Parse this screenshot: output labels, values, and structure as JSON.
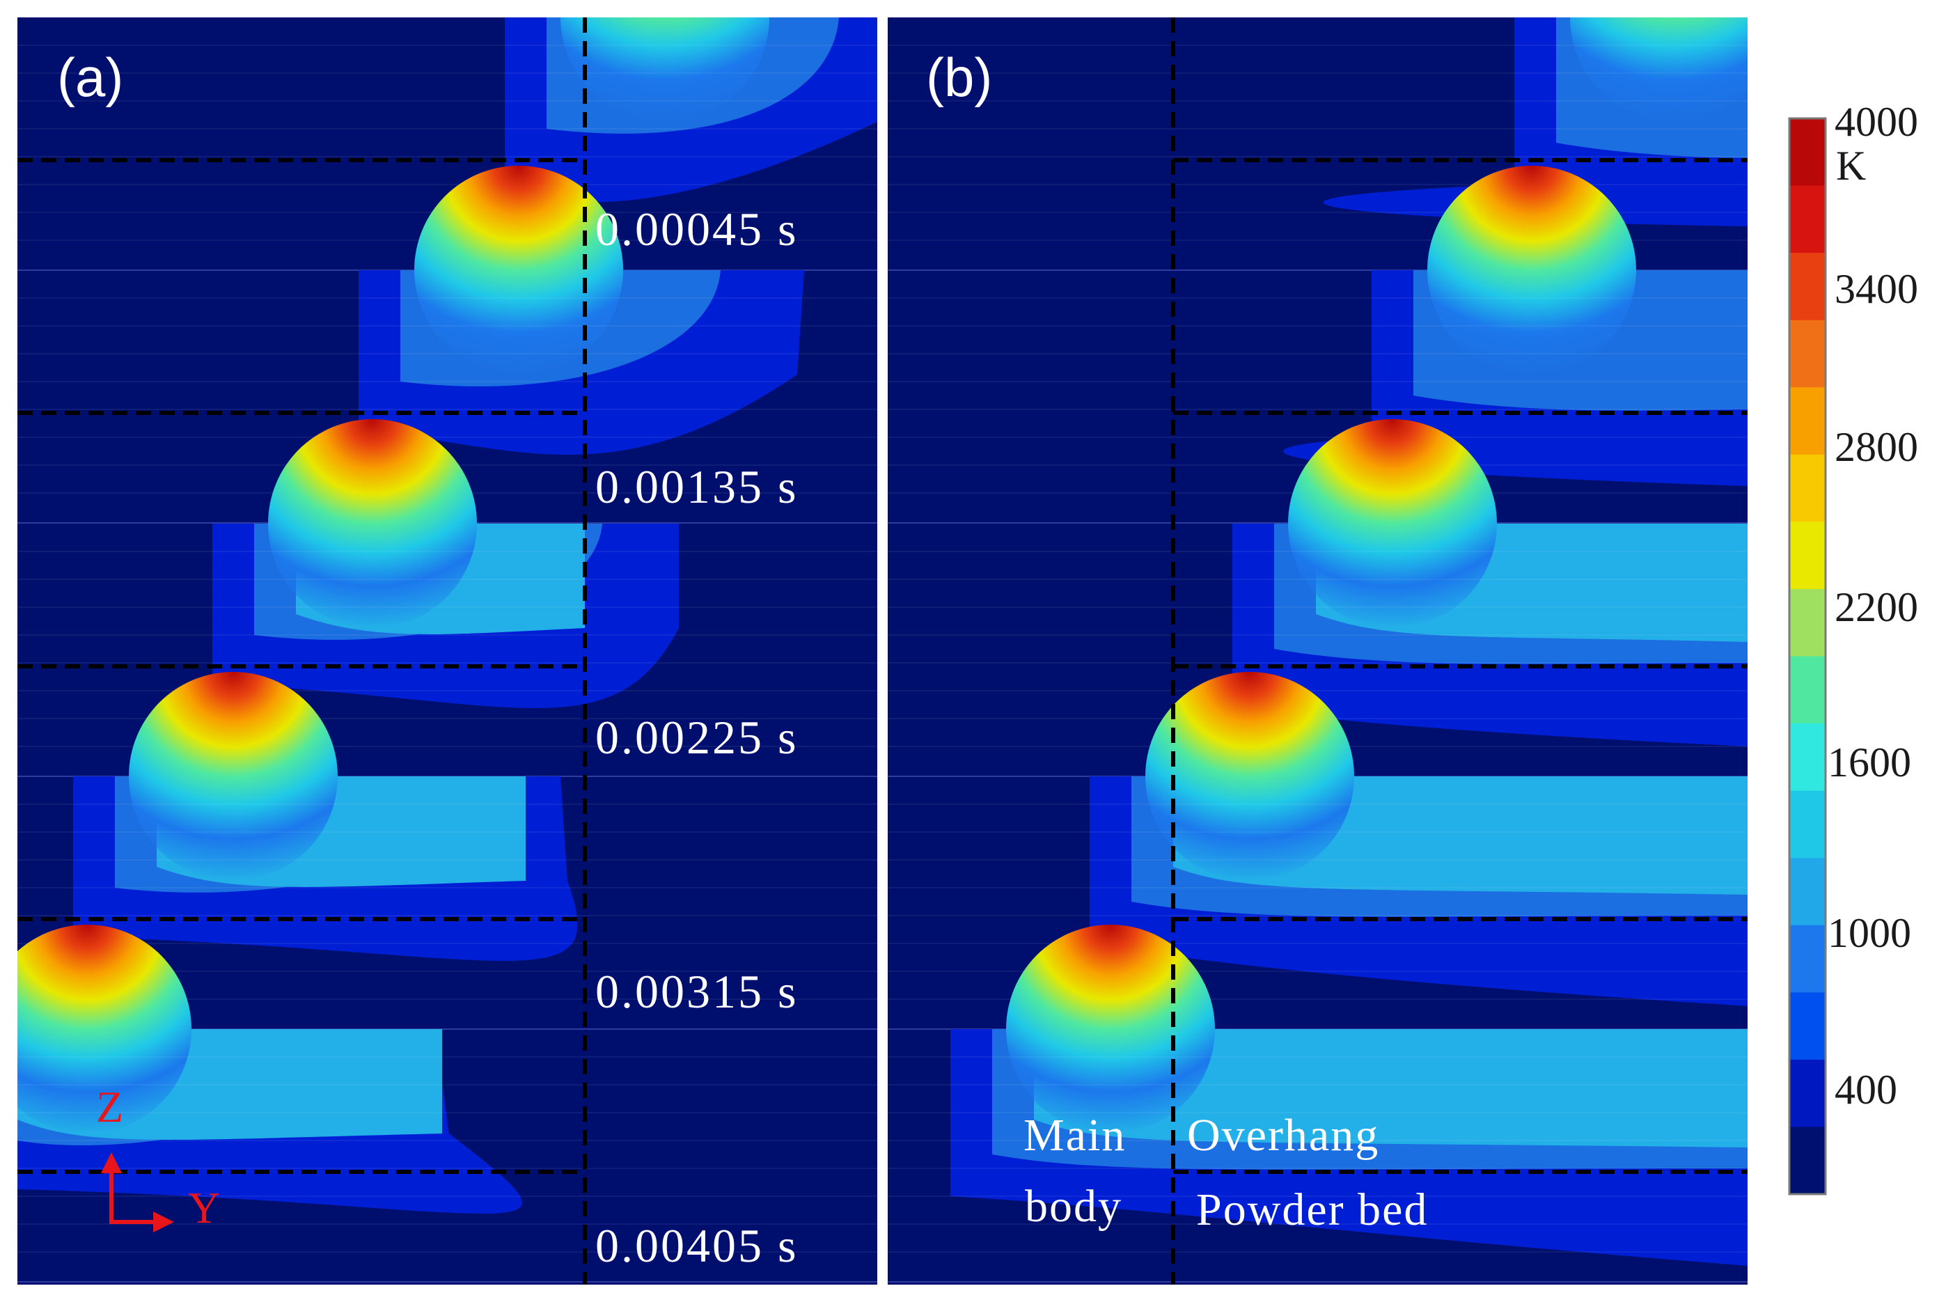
{
  "panels": [
    {
      "label": "(a)"
    },
    {
      "label": "(b)"
    }
  ],
  "time_labels": [
    "0.00045 s",
    "0.00135 s",
    "0.00225 s",
    "0.00315 s",
    "0.00405 s"
  ],
  "region_labels": {
    "main": "Main",
    "body": "body",
    "overhang": "Overhang",
    "powder_bed": "Powder bed"
  },
  "axes": {
    "z": "Z",
    "y": "Y"
  },
  "colorbar": {
    "unit": "K",
    "ticks": [
      "4000",
      "3400",
      "2800",
      "2200",
      "1600",
      "1000",
      "400"
    ],
    "tick_values": [
      4000,
      3400,
      2800,
      2200,
      1600,
      1000,
      400
    ],
    "min": 200,
    "max": 4000,
    "colors": [
      "#001070",
      "#0018c0",
      "#0050f0",
      "#1c78ec",
      "#20a8e8",
      "#20c8e8",
      "#30e8e0",
      "#50e8a0",
      "#a0e060",
      "#e8e800",
      "#f8c800",
      "#f8a000",
      "#f07018",
      "#e84010",
      "#d81410",
      "#b80808"
    ]
  },
  "colors": {
    "background": "#000f6e",
    "level1": "#001fd4",
    "level2": "#1c6fe0",
    "level3": "#23b0e8",
    "dashed_line": "#000000",
    "text": "#ffffff",
    "axis_arrow": "#e8151b"
  }
}
